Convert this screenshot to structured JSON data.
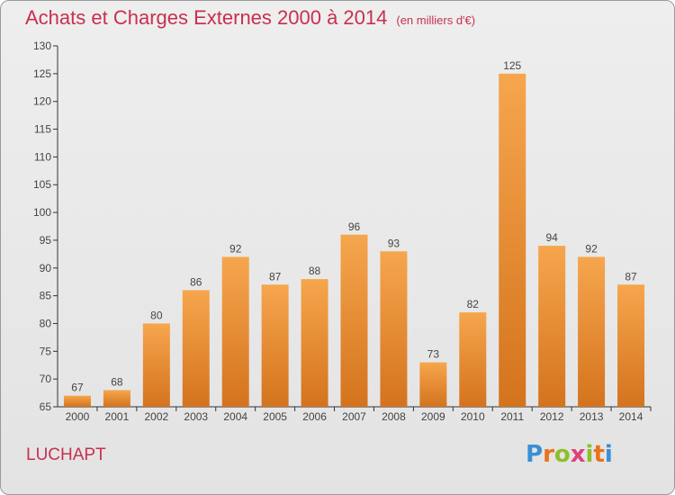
{
  "header": {
    "title": "Achats et Charges Externes 2000 à 2014",
    "subtitle": "(en milliers d'€)"
  },
  "footer": {
    "place": "LUCHAPT",
    "brand_letters": [
      {
        "ch": "P",
        "color": "#3a8fd6"
      },
      {
        "ch": "r",
        "color": "#e8731c"
      },
      {
        "ch": "o",
        "color": "#8fbf2a"
      },
      {
        "ch": "x",
        "color": "#e2407a"
      },
      {
        "ch": "i",
        "color": "#8fbf2a"
      },
      {
        "ch": "t",
        "color": "#e8731c"
      },
      {
        "ch": "i",
        "color": "#3a8fd6"
      }
    ]
  },
  "colors": {
    "accent": "#c8304f",
    "bar_light": "#f6a64d",
    "bar_dark": "#d4731e",
    "axis": "#333333"
  },
  "chart_data": {
    "type": "bar",
    "categories": [
      "2000",
      "2001",
      "2002",
      "2003",
      "2004",
      "2005",
      "2006",
      "2007",
      "2008",
      "2009",
      "2010",
      "2011",
      "2012",
      "2013",
      "2014"
    ],
    "values": [
      67,
      68,
      80,
      86,
      92,
      87,
      88,
      96,
      93,
      73,
      82,
      125,
      94,
      92,
      87
    ],
    "ylim": [
      65,
      130
    ],
    "yticks": [
      65,
      70,
      75,
      80,
      85,
      90,
      95,
      100,
      105,
      110,
      115,
      120,
      125,
      130
    ],
    "grid": false
  }
}
